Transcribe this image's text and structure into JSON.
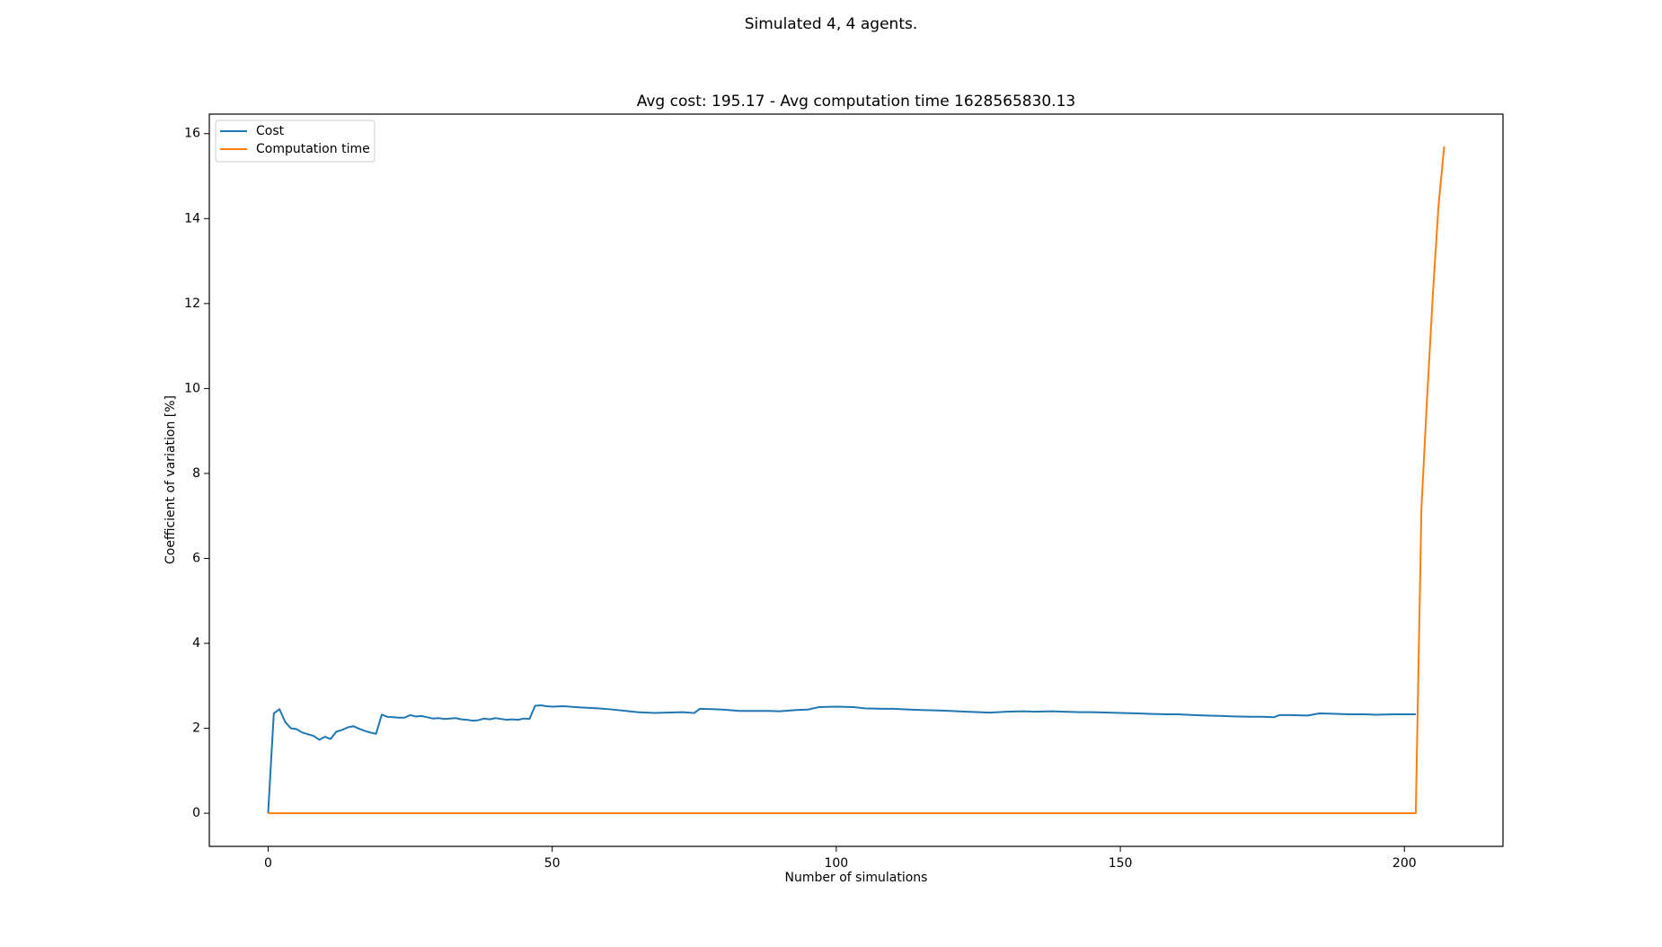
{
  "figure": {
    "suptitle": "Simulated 4, 4 agents."
  },
  "chart_data": {
    "type": "line",
    "title": "Avg cost: 195.17 - Avg computation time 1628565830.13",
    "xlabel": "Number of simulations",
    "ylabel": "Coefficient of variation [%]",
    "xlim": [
      -10.35,
      217.35
    ],
    "ylim": [
      -0.78,
      16.46
    ],
    "xticks": [
      0,
      50,
      100,
      150,
      200
    ],
    "yticks": [
      0,
      2,
      4,
      6,
      8,
      10,
      12,
      14,
      16
    ],
    "grid": false,
    "legend": {
      "placement": "upper left",
      "entries": [
        "Cost",
        "Computation time"
      ]
    },
    "series": [
      {
        "name": "Cost",
        "color": "#1f77b4",
        "x": [
          0,
          1,
          2,
          3,
          4,
          5,
          6,
          7,
          8,
          9,
          10,
          11,
          12,
          13,
          14,
          15,
          16,
          17,
          18,
          19,
          20,
          21,
          22,
          23,
          24,
          25,
          26,
          27,
          28,
          29,
          30,
          31,
          32,
          33,
          34,
          35,
          36,
          37,
          38,
          39,
          40,
          41,
          42,
          43,
          44,
          45,
          46,
          47,
          48,
          49,
          50,
          52,
          55,
          58,
          60,
          63,
          65,
          68,
          70,
          73,
          75,
          76,
          78,
          80,
          83,
          85,
          88,
          90,
          93,
          95,
          97,
          100,
          103,
          105,
          108,
          110,
          113,
          115,
          118,
          120,
          123,
          125,
          127,
          130,
          133,
          135,
          138,
          140,
          143,
          145,
          148,
          150,
          153,
          155,
          158,
          160,
          163,
          165,
          168,
          170,
          173,
          175,
          177,
          178,
          180,
          183,
          185,
          188,
          190,
          193,
          195,
          198,
          200,
          202
        ],
        "values": [
          0,
          2.35,
          2.45,
          2.15,
          2.0,
          1.98,
          1.9,
          1.86,
          1.82,
          1.73,
          1.8,
          1.75,
          1.92,
          1.96,
          2.02,
          2.05,
          1.99,
          1.94,
          1.9,
          1.87,
          2.32,
          2.27,
          2.26,
          2.25,
          2.25,
          2.31,
          2.28,
          2.29,
          2.26,
          2.23,
          2.24,
          2.22,
          2.23,
          2.24,
          2.21,
          2.2,
          2.18,
          2.19,
          2.23,
          2.21,
          2.24,
          2.22,
          2.2,
          2.21,
          2.2,
          2.23,
          2.22,
          2.53,
          2.54,
          2.52,
          2.51,
          2.52,
          2.49,
          2.47,
          2.45,
          2.41,
          2.38,
          2.36,
          2.37,
          2.38,
          2.36,
          2.46,
          2.45,
          2.44,
          2.41,
          2.41,
          2.41,
          2.4,
          2.43,
          2.44,
          2.5,
          2.51,
          2.5,
          2.47,
          2.46,
          2.46,
          2.44,
          2.43,
          2.42,
          2.41,
          2.39,
          2.38,
          2.37,
          2.39,
          2.4,
          2.39,
          2.4,
          2.39,
          2.38,
          2.38,
          2.37,
          2.36,
          2.35,
          2.34,
          2.33,
          2.33,
          2.31,
          2.3,
          2.29,
          2.28,
          2.27,
          2.27,
          2.26,
          2.31,
          2.31,
          2.3,
          2.35,
          2.34,
          2.33,
          2.33,
          2.32,
          2.33,
          2.33,
          2.33
        ]
      },
      {
        "name": "Computation time",
        "color": "#ff7f0e",
        "x": [
          0,
          100,
          202,
          203,
          204,
          205,
          206,
          207
        ],
        "values": [
          0,
          0,
          0,
          7.2,
          9.8,
          12.2,
          14.3,
          15.7
        ]
      }
    ]
  }
}
